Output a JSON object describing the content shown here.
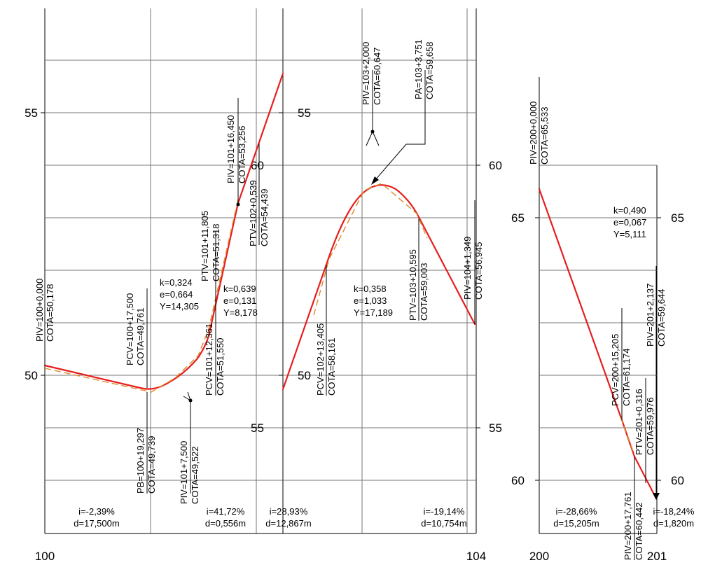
{
  "x_axis": {
    "t100": "100",
    "t104": "104",
    "t200": "200",
    "t201": "201"
  },
  "y_axis": {
    "left_55": "55",
    "left_50": "50",
    "mid_55": "55",
    "mid_50": "50",
    "mid_55b": "55",
    "mid_60": "60",
    "right_60": "60",
    "right_55": "55",
    "p3_65": "65",
    "p3_60": "60",
    "p3_65r": "65",
    "p3_60r": "60"
  },
  "points": {
    "piv100": [
      "PIV=100+0,000",
      "COTA=50,178"
    ],
    "pcv100": [
      "PCV=100+17,500",
      "COTA=49,761"
    ],
    "pb100": [
      "PB=100+19,297",
      "COTA=49,739"
    ],
    "piv101a": [
      "PIV=101+7,500",
      "COTA=49,522"
    ],
    "pcv101": [
      "PCV=101+12,361",
      "COTA=51,550"
    ],
    "ptv101": [
      "PTV=101+11,805",
      "COTA=51,318"
    ],
    "piv101b": [
      "PIV=101+16,450",
      "COTA=53,256"
    ],
    "ptv102": [
      "PTV=102+0,539",
      "COTA=54,439"
    ],
    "piv103": [
      "PIV=103+2,000",
      "COTA=60,647"
    ],
    "pa103": [
      "PA=103+3,751",
      "COTA=59,658"
    ],
    "pcv102": [
      "PCV=102+13,405",
      "COTA=58,161"
    ],
    "ptv103": [
      "PTV=103+10,595",
      "COTA=59,003"
    ],
    "piv104": [
      "PIV=104+1,349",
      "COTA=56,945"
    ],
    "piv200": [
      "PIV=200+0,000",
      "COTA=65,533"
    ],
    "pcv200": [
      "PCV=200+15,205",
      "COTA=61,174"
    ],
    "piv201": [
      "PIV=201+2,137",
      "COTA=59,644"
    ],
    "ptv201": [
      "PTV=201+0,316",
      "COTA=59,976"
    ],
    "piv200b": [
      "PIV=200+17,761",
      "COTA=60,442"
    ]
  },
  "curves": {
    "c1": [
      "k=0,324",
      "e=0,664",
      "Y=14,305"
    ],
    "c2": [
      "k=0,639",
      "e=0,131",
      "Y=8,178"
    ],
    "c3": [
      "k=0,358",
      "e=1,033",
      "Y=17,189"
    ],
    "c4": [
      "k=0,490",
      "e=0,067",
      "Y=5,111"
    ]
  },
  "grades": {
    "g1": [
      "i=-2,39%",
      "d=17,500m"
    ],
    "g2": [
      "i=41,72%",
      "d=0,556m"
    ],
    "g3": [
      "i=28,93%",
      "d=12,867m"
    ],
    "g4": [
      "i=-19,14%",
      "d=10,754m"
    ],
    "g5": [
      "i=-28,66%",
      "d=15,205m"
    ],
    "g6": [
      "i=-18,24%",
      "d=1,820m"
    ]
  }
}
